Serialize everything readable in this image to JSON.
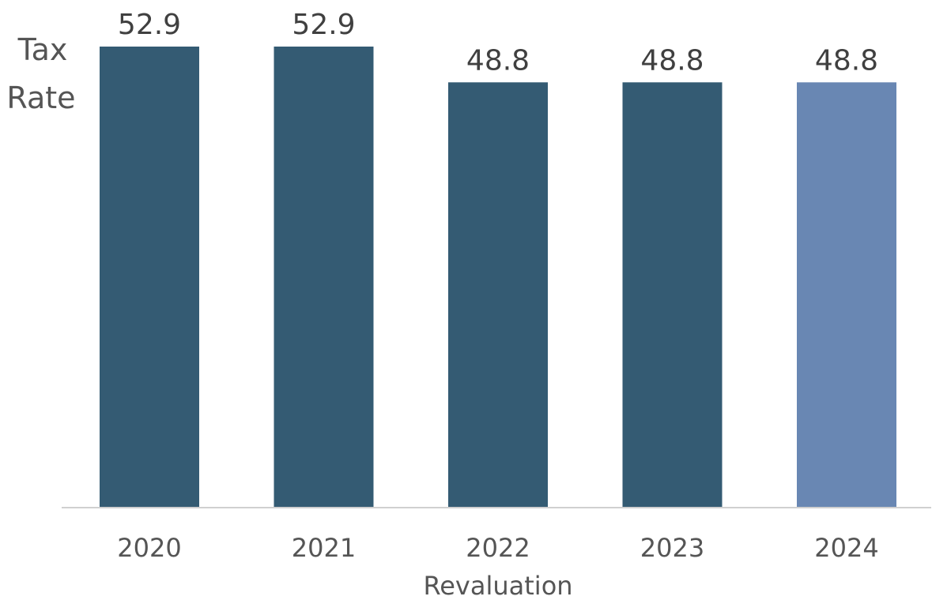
{
  "chart_data": {
    "type": "bar",
    "title": "",
    "ylabel_lines": [
      "Tax",
      "Rate"
    ],
    "xlabel": "Revaluation",
    "categories": [
      "2020",
      "2021",
      "2022",
      "2023",
      "2024"
    ],
    "values": [
      52.9,
      52.9,
      48.8,
      48.8,
      48.8
    ],
    "data_labels": [
      "52.9",
      "52.9",
      "48.8",
      "48.8",
      "48.8"
    ],
    "bar_colors": [
      "#345B73",
      "#345B73",
      "#345B73",
      "#345B73",
      "#6987B3"
    ],
    "axis_color": "#D0D0D0",
    "ylim": [
      0,
      52.9
    ],
    "grid": false,
    "legend": "none"
  }
}
